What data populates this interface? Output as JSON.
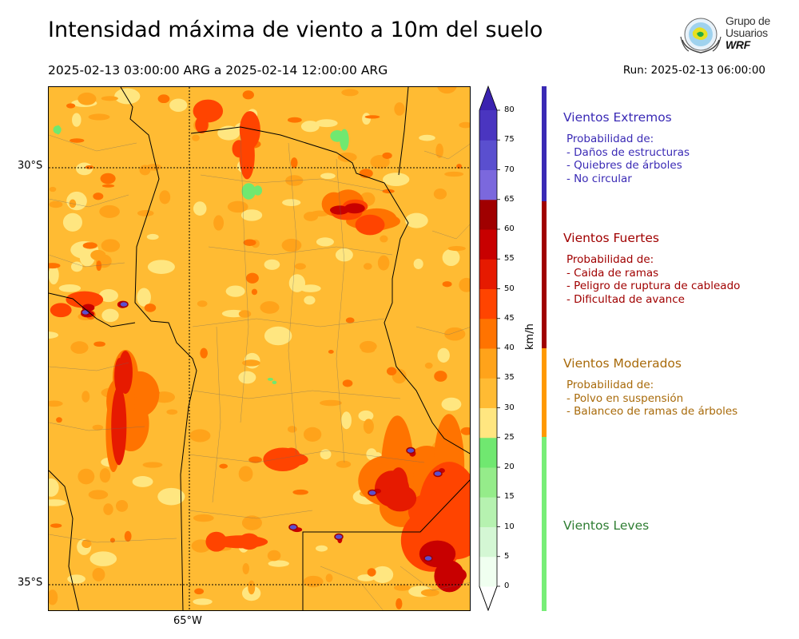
{
  "header": {
    "title": "Intensidad máxima de viento a 10m del suelo",
    "period": "2025-02-13 03:00:00 ARG  a  2025-02-14 12:00:00 ARG",
    "run": "Run: 2025-02-13 06:00:00"
  },
  "logo": {
    "line1": "Grupo de",
    "line2": "Usuarios",
    "line3": "WRF"
  },
  "map": {
    "lat_labels": [
      "30°S",
      "35°S"
    ],
    "lon_labels": [
      "65°W"
    ],
    "base_color": "#ffbb33"
  },
  "colorbar": {
    "unit": "km/h",
    "ticks": [
      "0",
      "5",
      "10",
      "15",
      "20",
      "25",
      "30",
      "35",
      "40",
      "45",
      "50",
      "55",
      "60",
      "65",
      "70",
      "75",
      "80"
    ],
    "colors": [
      "#f0fff0",
      "#d4f7d4",
      "#b6f2b0",
      "#95ec8a",
      "#70e870",
      "#ffe680",
      "#ffbb33",
      "#ffa31a",
      "#ff7300",
      "#ff4400",
      "#e61a00",
      "#c80000",
      "#a00000",
      "#7b68dd",
      "#5a4fcf",
      "#4a35c0"
    ],
    "under_color": "#ffffff",
    "over_color": "#3a22b0"
  },
  "categories": [
    {
      "title": "Vientos Extremos",
      "color": "#3a2ab5",
      "desc": [
        "Probabilidad de:",
        "- Daños de estructuras",
        "- Quiebres de árboles",
        "- No circular"
      ]
    },
    {
      "title": "Vientos Fuertes",
      "color": "#a00000",
      "desc": [
        "Probabilidad de:",
        "- Caida de ramas",
        "- Peligro de ruptura de cableado",
        "- Dificultad de avance"
      ]
    },
    {
      "title": "Vientos Moderados",
      "color": "#a86a0a",
      "desc": [
        "Probabilidad de:",
        "- Polvo en suspensión",
        "- Balanceo de ramas de árboles"
      ]
    },
    {
      "title": "Vientos Leves",
      "color": "#2e7d32",
      "desc": []
    }
  ],
  "category_bar_colors": [
    "#3a2ab5",
    "#a00000",
    "#ff9900",
    "#77ee77"
  ]
}
